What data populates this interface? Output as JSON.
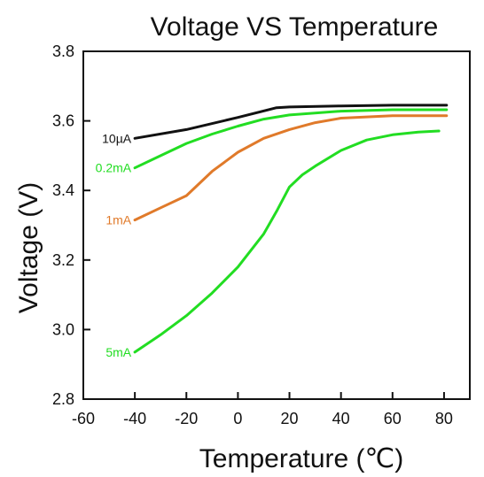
{
  "chart_data": {
    "type": "line",
    "title": "Voltage VS Temperature",
    "xlabel": "Temperature (℃)",
    "ylabel": "Voltage (V)",
    "xlim": [
      -60,
      90
    ],
    "ylim": [
      2.8,
      3.8
    ],
    "x_ticks": [
      "-60",
      "-40",
      "-20",
      "0",
      "20",
      "40",
      "60",
      "80"
    ],
    "y_ticks": [
      "2.8",
      "3.0",
      "3.2",
      "3.4",
      "3.6",
      "3.8"
    ],
    "grid": false,
    "series": [
      {
        "name": "10µA",
        "color": "#111111",
        "points": [
          [
            -40,
            3.55
          ],
          [
            -20,
            3.575
          ],
          [
            0,
            3.61
          ],
          [
            15,
            3.638
          ],
          [
            20,
            3.64
          ],
          [
            40,
            3.643
          ],
          [
            60,
            3.645
          ],
          [
            81,
            3.645
          ]
        ]
      },
      {
        "name": "0.2mA",
        "color": "#22dd22",
        "points": [
          [
            -40,
            3.465
          ],
          [
            -30,
            3.5
          ],
          [
            -20,
            3.535
          ],
          [
            -10,
            3.562
          ],
          [
            0,
            3.585
          ],
          [
            10,
            3.605
          ],
          [
            20,
            3.617
          ],
          [
            40,
            3.628
          ],
          [
            60,
            3.632
          ],
          [
            81,
            3.632
          ]
        ]
      },
      {
        "name": "1mA",
        "color": "#e07a2a",
        "points": [
          [
            -40,
            3.315
          ],
          [
            -30,
            3.35
          ],
          [
            -20,
            3.385
          ],
          [
            -10,
            3.455
          ],
          [
            0,
            3.51
          ],
          [
            10,
            3.55
          ],
          [
            20,
            3.575
          ],
          [
            30,
            3.595
          ],
          [
            40,
            3.608
          ],
          [
            60,
            3.615
          ],
          [
            81,
            3.615
          ]
        ]
      },
      {
        "name": "5mA",
        "color": "#22dd22",
        "points": [
          [
            -40,
            2.935
          ],
          [
            -30,
            2.985
          ],
          [
            -20,
            3.04
          ],
          [
            -10,
            3.105
          ],
          [
            0,
            3.18
          ],
          [
            10,
            3.275
          ],
          [
            15,
            3.34
          ],
          [
            20,
            3.41
          ],
          [
            25,
            3.445
          ],
          [
            30,
            3.47
          ],
          [
            40,
            3.515
          ],
          [
            50,
            3.545
          ],
          [
            60,
            3.56
          ],
          [
            70,
            3.568
          ],
          [
            78,
            3.571
          ]
        ]
      }
    ]
  }
}
